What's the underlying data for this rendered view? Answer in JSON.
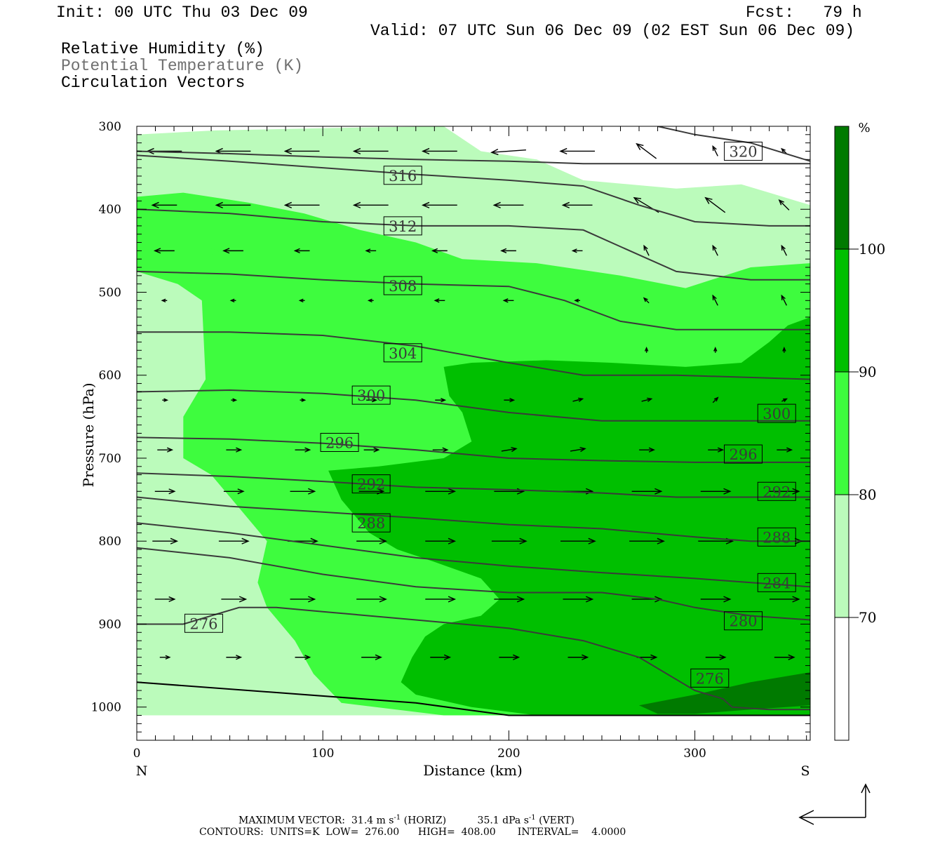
{
  "header": {
    "init": "Init: 00 UTC Thu 03 Dec 09",
    "fcst": "Fcst:   79 h",
    "valid": "Valid: 07 UTC Sun 06 Dec 09 (02 EST Sun 06 Dec 09)",
    "legend_rh": "Relative Humidity (%)",
    "legend_theta": "Potential Temperature (K)",
    "legend_vec": "Circulation Vectors"
  },
  "footer": {
    "max_vector_prefix": "MAXIMUM VECTOR:  31.4 m s",
    "max_vector_horiz": " (HORIZ)",
    "max_vector_vert_prefix": "35.1 dPa s",
    "max_vector_vert": " (VERT)",
    "exp": "-1",
    "contours": "CONTOURS:  UNITS=K  LOW=  276.00      HIGH=  408.00       INTERVAL=    4.0000"
  },
  "colors": {
    "rh_70_80": "#bbfbbb",
    "rh_80_90": "#3efc3e",
    "rh_90_100": "#00bf00",
    "rh_100": "#007a00",
    "theta_line": "#3a3a3a"
  },
  "chart_data": {
    "type": "cross-section",
    "xlabel": "Distance (km)",
    "ylabel": "Pressure (hPa)",
    "xlim": [
      0,
      362
    ],
    "ylim": [
      1040,
      300
    ],
    "x_ticks": [
      "0",
      "100",
      "200",
      "300"
    ],
    "y_ticks": [
      "300",
      "400",
      "500",
      "600",
      "700",
      "800",
      "900",
      "1000"
    ],
    "end_labels": {
      "left": "N",
      "right": "S"
    },
    "colorbar": {
      "unit": "%",
      "levels": [
        "100",
        "90",
        "80",
        "70"
      ]
    },
    "rh_fill_regions": [
      {
        "level": "70-80",
        "points": [
          [
            0,
            310
          ],
          [
            42,
            305
          ],
          [
            105,
            302
          ],
          [
            165,
            300
          ],
          [
            185,
            330
          ],
          [
            215,
            340
          ],
          [
            240,
            365
          ],
          [
            290,
            375
          ],
          [
            325,
            370
          ],
          [
            340,
            380
          ],
          [
            362,
            395
          ],
          [
            362,
            1010
          ],
          [
            0,
            1010
          ]
        ]
      },
      {
        "level": "80-90",
        "points": [
          [
            0,
            385
          ],
          [
            25,
            380
          ],
          [
            60,
            392
          ],
          [
            90,
            405
          ],
          [
            120,
            425
          ],
          [
            150,
            440
          ],
          [
            175,
            460
          ],
          [
            215,
            465
          ],
          [
            260,
            480
          ],
          [
            295,
            495
          ],
          [
            330,
            470
          ],
          [
            362,
            465
          ],
          [
            362,
            1010
          ],
          [
            165,
            1010
          ],
          [
            110,
            995
          ],
          [
            95,
            960
          ],
          [
            85,
            920
          ],
          [
            70,
            880
          ],
          [
            65,
            850
          ],
          [
            70,
            800
          ],
          [
            55,
            760
          ],
          [
            40,
            720
          ],
          [
            25,
            700
          ],
          [
            25,
            650
          ],
          [
            37,
            605
          ],
          [
            35,
            510
          ],
          [
            22,
            490
          ],
          [
            0,
            475
          ]
        ]
      },
      {
        "level": "90-100",
        "points": [
          [
            165,
            590
          ],
          [
            180,
            585
          ],
          [
            220,
            582
          ],
          [
            255,
            585
          ],
          [
            295,
            590
          ],
          [
            325,
            585
          ],
          [
            340,
            560
          ],
          [
            350,
            540
          ],
          [
            362,
            530
          ],
          [
            362,
            1010
          ],
          [
            215,
            1010
          ],
          [
            180,
            1000
          ],
          [
            150,
            985
          ],
          [
            142,
            970
          ],
          [
            148,
            940
          ],
          [
            155,
            915
          ],
          [
            165,
            900
          ],
          [
            185,
            890
          ],
          [
            195,
            870
          ],
          [
            185,
            845
          ],
          [
            160,
            825
          ],
          [
            140,
            810
          ],
          [
            125,
            790
          ],
          [
            110,
            750
          ],
          [
            103,
            715
          ],
          [
            130,
            710
          ],
          [
            165,
            700
          ],
          [
            180,
            680
          ],
          [
            175,
            645
          ],
          [
            168,
            625
          ]
        ]
      },
      {
        "level": "100+",
        "points": [
          [
            270,
            998
          ],
          [
            300,
            985
          ],
          [
            330,
            970
          ],
          [
            362,
            958
          ],
          [
            362,
            998
          ],
          [
            330,
            1003
          ],
          [
            300,
            1008
          ],
          [
            280,
            1008
          ]
        ]
      },
      {
        "level": "80-90",
        "points": [
          [
            35,
            445
          ],
          [
            45,
            450
          ],
          [
            40,
            455
          ]
        ]
      }
    ],
    "theta_contours": [
      {
        "level": "276",
        "points": [
          [
            0,
            900
          ],
          [
            25,
            900
          ],
          [
            40,
            890
          ],
          [
            55,
            880
          ],
          [
            75,
            880
          ],
          [
            100,
            885
          ],
          [
            150,
            895
          ],
          [
            200,
            905
          ],
          [
            240,
            920
          ],
          [
            270,
            940
          ],
          [
            300,
            980
          ],
          [
            315,
            990
          ],
          [
            320,
            1000
          ],
          [
            340,
            1003
          ],
          [
            362,
            1003
          ]
        ]
      },
      {
        "level": "280",
        "points": [
          [
            0,
            808
          ],
          [
            50,
            820
          ],
          [
            100,
            840
          ],
          [
            150,
            855
          ],
          [
            200,
            862
          ],
          [
            250,
            862
          ],
          [
            280,
            870
          ],
          [
            300,
            880
          ],
          [
            330,
            890
          ],
          [
            362,
            895
          ]
        ]
      },
      {
        "level": "284",
        "points": [
          [
            0,
            778
          ],
          [
            50,
            790
          ],
          [
            100,
            805
          ],
          [
            150,
            820
          ],
          [
            200,
            830
          ],
          [
            250,
            838
          ],
          [
            300,
            845
          ],
          [
            330,
            850
          ],
          [
            362,
            855
          ]
        ]
      },
      {
        "level": "288",
        "points": [
          [
            0,
            747
          ],
          [
            50,
            758
          ],
          [
            100,
            765
          ],
          [
            150,
            772
          ],
          [
            200,
            780
          ],
          [
            250,
            785
          ],
          [
            300,
            795
          ],
          [
            330,
            800
          ],
          [
            362,
            800
          ]
        ]
      },
      {
        "level": "292",
        "points": [
          [
            0,
            718
          ],
          [
            50,
            722
          ],
          [
            100,
            728
          ],
          [
            150,
            735
          ],
          [
            200,
            738
          ],
          [
            250,
            742
          ],
          [
            290,
            747
          ],
          [
            362,
            747
          ]
        ]
      },
      {
        "level": "296",
        "points": [
          [
            0,
            675
          ],
          [
            50,
            677
          ],
          [
            100,
            682
          ],
          [
            150,
            690
          ],
          [
            200,
            700
          ],
          [
            250,
            703
          ],
          [
            300,
            705
          ],
          [
            362,
            705
          ]
        ]
      },
      {
        "level": "300",
        "points": [
          [
            0,
            620
          ],
          [
            50,
            618
          ],
          [
            100,
            622
          ],
          [
            150,
            630
          ],
          [
            200,
            645
          ],
          [
            250,
            655
          ],
          [
            300,
            655
          ],
          [
            362,
            655
          ]
        ]
      },
      {
        "level": "304",
        "points": [
          [
            0,
            548
          ],
          [
            50,
            548
          ],
          [
            100,
            552
          ],
          [
            150,
            565
          ],
          [
            200,
            585
          ],
          [
            240,
            600
          ],
          [
            290,
            600
          ],
          [
            362,
            605
          ]
        ]
      },
      {
        "level": "308",
        "points": [
          [
            0,
            475
          ],
          [
            50,
            478
          ],
          [
            100,
            485
          ],
          [
            150,
            490
          ],
          [
            200,
            493
          ],
          [
            230,
            510
          ],
          [
            260,
            535
          ],
          [
            290,
            545
          ],
          [
            362,
            545
          ]
        ]
      },
      {
        "level": "312",
        "points": [
          [
            0,
            400
          ],
          [
            50,
            405
          ],
          [
            100,
            415
          ],
          [
            150,
            420
          ],
          [
            200,
            420
          ],
          [
            240,
            425
          ],
          [
            260,
            445
          ],
          [
            290,
            475
          ],
          [
            330,
            485
          ],
          [
            362,
            485
          ]
        ]
      },
      {
        "level": "316",
        "points": [
          [
            0,
            335
          ],
          [
            50,
            342
          ],
          [
            100,
            350
          ],
          [
            150,
            358
          ],
          [
            200,
            365
          ],
          [
            240,
            372
          ],
          [
            270,
            395
          ],
          [
            300,
            415
          ],
          [
            340,
            420
          ],
          [
            362,
            420
          ]
        ]
      },
      {
        "level": "320",
        "points": [
          [
            0,
            330
          ],
          [
            50,
            333
          ],
          [
            100,
            337
          ],
          [
            150,
            340
          ],
          [
            200,
            342
          ],
          [
            240,
            345
          ],
          [
            362,
            345
          ]
        ]
      },
      {
        "level": "320",
        "points": [
          [
            280,
            300
          ],
          [
            300,
            310
          ],
          [
            330,
            320
          ],
          [
            362,
            342
          ]
        ]
      }
    ],
    "contour_labels": [
      {
        "text": "316",
        "x": 143,
        "y": 359
      },
      {
        "text": "312",
        "x": 143,
        "y": 420
      },
      {
        "text": "308",
        "x": 143,
        "y": 492
      },
      {
        "text": "304",
        "x": 143,
        "y": 573
      },
      {
        "text": "300",
        "x": 126,
        "y": 624
      },
      {
        "text": "296",
        "x": 109,
        "y": 681
      },
      {
        "text": "292",
        "x": 126,
        "y": 731
      },
      {
        "text": "288",
        "x": 126,
        "y": 778
      },
      {
        "text": "276",
        "x": 36,
        "y": 899
      },
      {
        "text": "320",
        "x": 326,
        "y": 330
      },
      {
        "text": "300",
        "x": 344,
        "y": 646
      },
      {
        "text": "296",
        "x": 326,
        "y": 695
      },
      {
        "text": "292",
        "x": 344,
        "y": 740
      },
      {
        "text": "288",
        "x": 344,
        "y": 795
      },
      {
        "text": "284",
        "x": 344,
        "y": 850
      },
      {
        "text": "280",
        "x": 326,
        "y": 896
      },
      {
        "text": "276",
        "x": 308,
        "y": 965
      }
    ],
    "vectors_u": [
      [
        -7,
        -7,
        -7,
        -7,
        -7,
        -7,
        -7,
        -4,
        -1,
        -1
      ],
      [
        -5,
        -7,
        -7,
        -7,
        -7,
        -6,
        -6,
        -5,
        -4,
        -2
      ],
      [
        -4,
        -4,
        -3,
        -2,
        -3,
        -3,
        -2,
        -1,
        -1,
        -1
      ],
      [
        -1,
        -1,
        -1,
        -1,
        -2,
        -2,
        -1,
        -1,
        -1,
        -1
      ],
      [
        0,
        0,
        0,
        0,
        0,
        0,
        0,
        0,
        0,
        0
      ],
      [
        1,
        1,
        1,
        2,
        2,
        2,
        2,
        2,
        1,
        1
      ],
      [
        3,
        3,
        3,
        3,
        3,
        3,
        3,
        3,
        3,
        3
      ],
      [
        4,
        4,
        5,
        5,
        6,
        6,
        6,
        6,
        6,
        6
      ],
      [
        5,
        6,
        6,
        6,
        6,
        7,
        7,
        7,
        7,
        7
      ],
      [
        4,
        5,
        5,
        6,
        6,
        6,
        6,
        6,
        6,
        6
      ],
      [
        2,
        3,
        3,
        4,
        4,
        4,
        4,
        4,
        4,
        4
      ]
    ],
    "vectors_w": [
      [
        0,
        0,
        0,
        0,
        0,
        -0.5,
        0,
        3,
        2,
        1
      ],
      [
        0,
        0,
        0,
        0,
        0,
        0,
        0,
        3,
        3,
        2
      ],
      [
        0,
        0,
        0,
        0,
        0,
        0,
        0,
        2,
        2,
        2
      ],
      [
        0,
        0,
        0,
        0,
        0,
        0,
        0,
        1,
        2,
        2
      ],
      [
        0,
        0,
        0,
        0,
        0,
        0,
        0,
        1,
        1,
        1
      ],
      [
        0,
        0,
        0,
        0,
        0,
        0,
        0.5,
        0.5,
        1,
        0.5
      ],
      [
        0,
        0,
        0,
        0,
        0,
        0.5,
        0.5,
        0,
        0,
        0
      ],
      [
        0,
        0,
        0,
        0,
        0,
        0,
        0,
        0,
        0,
        0
      ],
      [
        0,
        0,
        0,
        0,
        0,
        0,
        0,
        0,
        0,
        0
      ],
      [
        0,
        0,
        0,
        0,
        0,
        0,
        0,
        0,
        0,
        0
      ],
      [
        0,
        0,
        0,
        0,
        0,
        0,
        0,
        0,
        0,
        0
      ]
    ],
    "vector_x": [
      15,
      52,
      89,
      126,
      163,
      200,
      237,
      274,
      311,
      348
    ],
    "vector_p": [
      330,
      395,
      450,
      510,
      570,
      630,
      690,
      740,
      800,
      870,
      940
    ]
  }
}
